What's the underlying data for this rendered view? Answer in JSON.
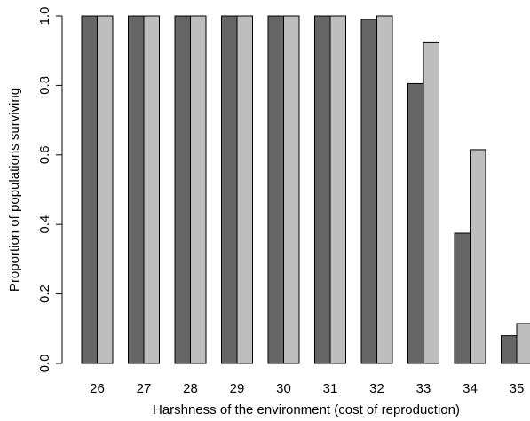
{
  "chart_data": {
    "type": "bar",
    "title": "",
    "xlabel": "Harshness of the environment (cost of reproduction)",
    "ylabel": "Proportion of populations surviving",
    "ylim": [
      0,
      1
    ],
    "yticks": [
      "0.0",
      "0.2",
      "0.4",
      "0.6",
      "0.8",
      "1.0"
    ],
    "grid": false,
    "categories": [
      "26",
      "27",
      "28",
      "29",
      "30",
      "31",
      "32",
      "33",
      "34",
      "35"
    ],
    "series": [
      {
        "color": "#666666",
        "values": [
          1.0,
          1.0,
          1.0,
          1.0,
          1.0,
          1.0,
          0.99,
          0.805,
          0.375,
          0.08
        ]
      },
      {
        "color": "#bebebe",
        "values": [
          1.0,
          1.0,
          1.0,
          1.0,
          1.0,
          1.0,
          1.0,
          0.925,
          0.615,
          0.115
        ]
      }
    ]
  }
}
